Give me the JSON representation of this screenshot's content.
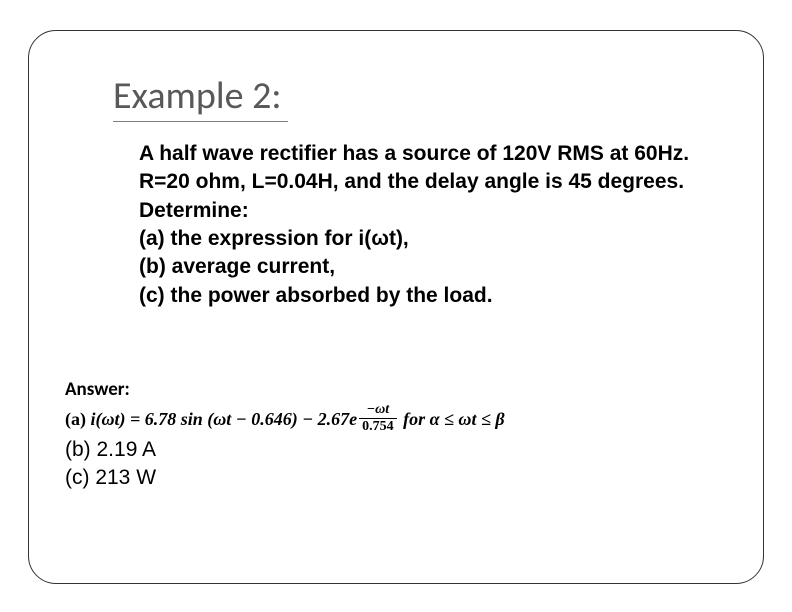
{
  "slide": {
    "title": "Example 2:",
    "problem": {
      "lines": [
        "A half wave rectifier has a source of 120V RMS at 60Hz.",
        "R=20 ohm, L=0.04H, and the delay angle is 45 degrees.",
        "Determine:",
        "(a) the expression for i(ωt),",
        "(b) average current,",
        "(c) the power absorbed by the load."
      ]
    },
    "answer": {
      "label": "Answer:",
      "part_a": {
        "prefix": "(a) ",
        "lhs": "i(ωt) = 6.78 sin (ωt − 0.646) − 2.67e",
        "exp_num": "−ωt",
        "exp_den": "0.754",
        "tail": "   for  α ≤ ωt ≤ β"
      },
      "part_b": "(b) 2.19 A",
      "part_c": "(c) 213 W"
    }
  },
  "style": {
    "title_color": "#595959",
    "text_color": "#000000",
    "border_color": "#333333"
  }
}
